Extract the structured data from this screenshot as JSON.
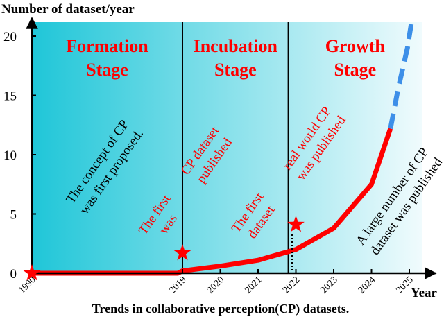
{
  "chart_data": {
    "type": "line",
    "title": "",
    "ylabel": "Number of dataset/year",
    "xlabel": "Year",
    "caption": "Trends in collaborative perception(CP) datasets.",
    "x_ticks": [
      "1990",
      "2019",
      "2020",
      "2021",
      "2022",
      "2023",
      "2024",
      "2025"
    ],
    "y_ticks": [
      0,
      5,
      10,
      15,
      20
    ],
    "ylim": [
      0,
      21
    ],
    "stages": [
      {
        "name_line1": "Formation",
        "name_line2": "Stage",
        "from": "1990",
        "to": "2019"
      },
      {
        "name_line1": "Incubation",
        "name_line2": "Stage",
        "from": "2019",
        "to": "2021.8"
      },
      {
        "name_line1": "Growth",
        "name_line2": "Stage",
        "from": "2021.8",
        "to": "2026"
      }
    ],
    "series": [
      {
        "style": "solid",
        "color": "#ff0000",
        "points": [
          [
            "1990",
            0
          ],
          [
            "2018.1",
            0
          ],
          [
            "2019",
            0.2
          ],
          [
            "2020",
            0.6
          ],
          [
            "2021",
            1.1
          ],
          [
            "2022",
            2.0
          ],
          [
            "2023",
            3.8
          ],
          [
            "2024",
            7.5
          ],
          [
            "2024.5",
            12.2
          ]
        ]
      },
      {
        "style": "dashed",
        "color": "#3d8fe8",
        "points": [
          [
            "2024.5",
            12.2
          ],
          [
            "2024.7",
            15.5
          ],
          [
            "2024.95",
            19.0
          ],
          [
            "2025.05",
            21.0
          ]
        ]
      }
    ],
    "markers": [
      {
        "x": "1990",
        "y": 0,
        "shape": "star",
        "color": "#ff0000"
      },
      {
        "x": "2019",
        "y": 1.7,
        "shape": "star",
        "color": "#ff0000"
      },
      {
        "x": "2022",
        "y": 4.1,
        "shape": "star",
        "color": "#ff0000"
      }
    ],
    "annotations": [
      {
        "lines": [
          "The concept of CP",
          "was first proposed."
        ],
        "color": "#000000"
      },
      {
        "lines": [
          "The first",
          "was"
        ],
        "color": "#ff0000"
      },
      {
        "lines": [
          "CP dataset",
          "published"
        ],
        "color": "#ff0000"
      },
      {
        "lines": [
          "The first",
          "dataset"
        ],
        "color": "#ff0000"
      },
      {
        "lines": [
          "real world CP",
          "was published"
        ],
        "color": "#ff0000"
      },
      {
        "lines": [
          "A large number of CP",
          "dataset was published"
        ],
        "color": "#000000"
      }
    ],
    "grid": false,
    "colors": {
      "stage_fill_dark": "#1fc6d8",
      "stage_fill_light": "#f0fbfd",
      "stage_text": "#ff0000",
      "curve": "#ff0000",
      "projection": "#3d8fe8"
    }
  }
}
